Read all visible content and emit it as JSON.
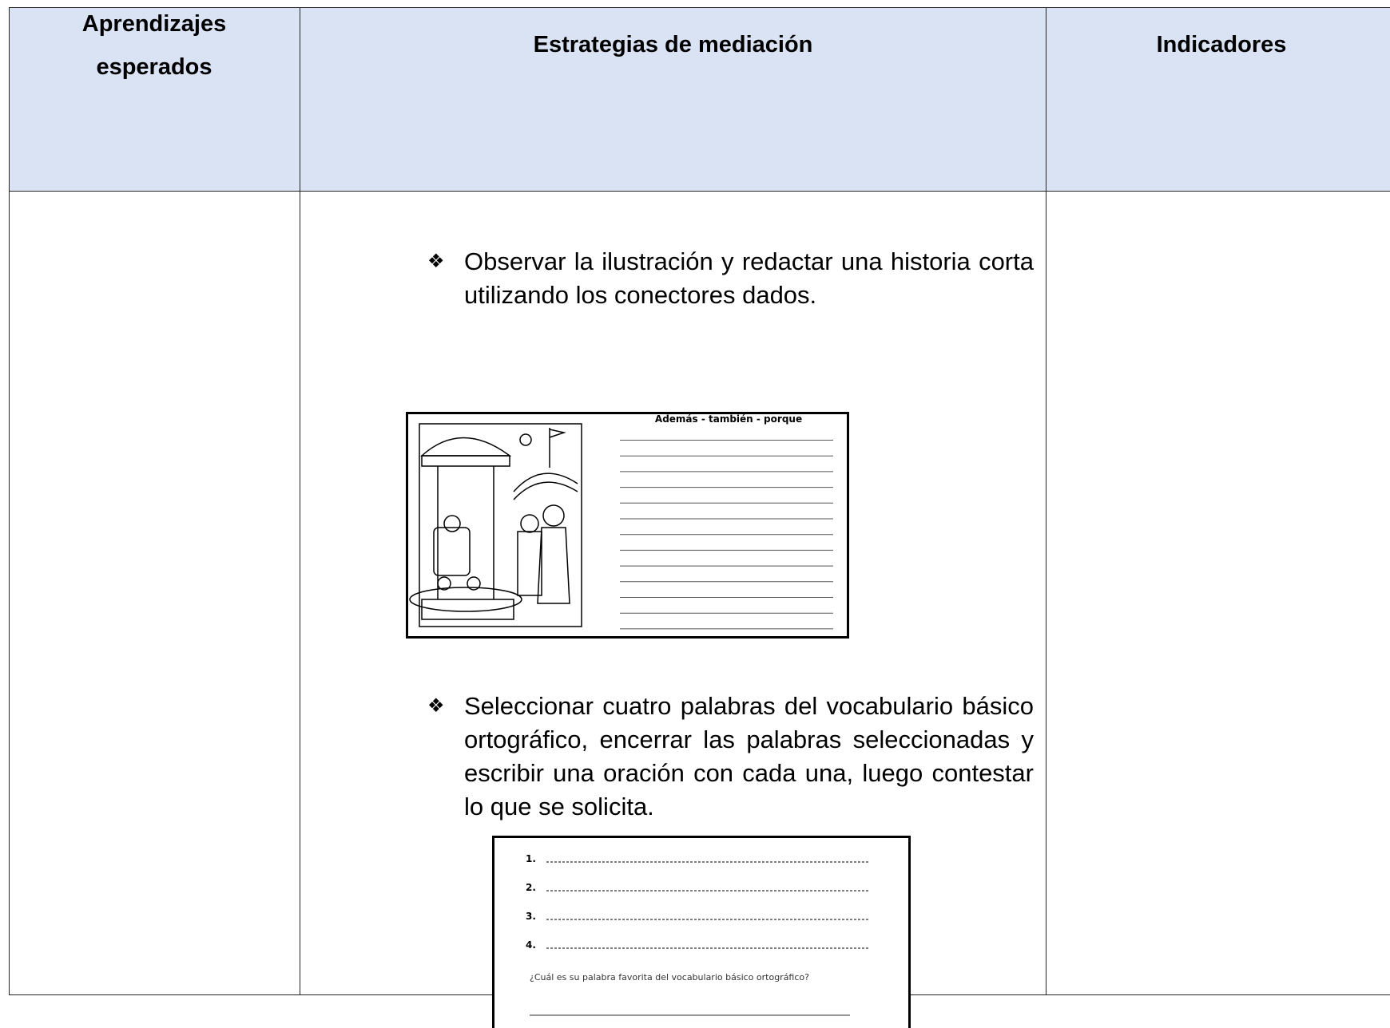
{
  "header": {
    "columns": [
      "Aprendizajes esperados",
      "Estrategias de mediación",
      "Indicadores"
    ]
  },
  "body": {
    "strategies": [
      "Observar la ilustración y redactar una historia corta utilizando los conectores dados.",
      "Seleccionar cuatro palabras del vocabulario básico ortográfico, encerrar las palabras seleccionadas y escribir una oración con cada una, luego contestar lo que se solicita."
    ]
  },
  "figure1": {
    "title": "Además - también - porque"
  },
  "figure2": {
    "items": [
      "1.",
      "2.",
      "3.",
      "4."
    ],
    "question": "¿Cuál es su palabra favorita del vocabulario básico ortográfico?"
  }
}
